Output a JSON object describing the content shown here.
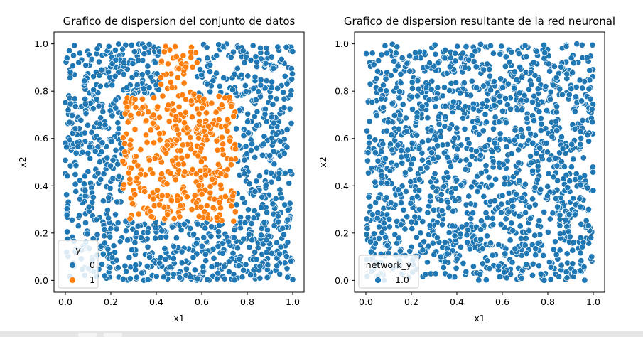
{
  "chart_data": [
    {
      "type": "scatter",
      "title": "Grafico de dispersion del conjunto de datos",
      "xlabel": "x1",
      "ylabel": "x2",
      "xlim": [
        -0.05,
        1.05
      ],
      "ylim": [
        -0.05,
        1.05
      ],
      "xticks": [
        "0.0",
        "0.2",
        "0.4",
        "0.6",
        "0.8",
        "1.0"
      ],
      "yticks": [
        "0.0",
        "0.2",
        "0.4",
        "0.6",
        "0.8",
        "1.0"
      ],
      "grid": false,
      "legend": {
        "title": "y",
        "placement": "lower-left",
        "entries": [
          {
            "label": "0",
            "color": "#1f77b4"
          },
          {
            "label": "1",
            "color": "#ff7f0e"
          }
        ]
      },
      "series": [
        {
          "name": "0",
          "color": "#1f77b4",
          "n_points": 1100
        },
        {
          "name": "1",
          "color": "#ff7f0e",
          "n_points": 420
        }
      ],
      "class_region": {
        "label": "1",
        "polygon": [
          [
            0.25,
            0.25
          ],
          [
            0.75,
            0.25
          ],
          [
            0.75,
            0.78
          ],
          [
            0.58,
            0.78
          ],
          [
            0.58,
            1.0
          ],
          [
            0.42,
            1.0
          ],
          [
            0.42,
            0.78
          ],
          [
            0.25,
            0.78
          ]
        ]
      }
    },
    {
      "type": "scatter",
      "title": "Grafico de dispersion resultante de la red neuronal",
      "xlabel": "x1",
      "ylabel": "x2",
      "xlim": [
        -0.05,
        1.05
      ],
      "ylim": [
        -0.05,
        1.05
      ],
      "xticks": [
        "0.0",
        "0.2",
        "0.4",
        "0.6",
        "0.8",
        "1.0"
      ],
      "yticks": [
        "0.0",
        "0.2",
        "0.4",
        "0.6",
        "0.8",
        "1.0"
      ],
      "grid": false,
      "legend": {
        "title": "network_y",
        "placement": "lower-left",
        "entries": [
          {
            "label": "1.0",
            "color": "#1f77b4"
          }
        ]
      },
      "series": [
        {
          "name": "1.0",
          "color": "#1f77b4",
          "n_points": 1500
        }
      ]
    }
  ]
}
